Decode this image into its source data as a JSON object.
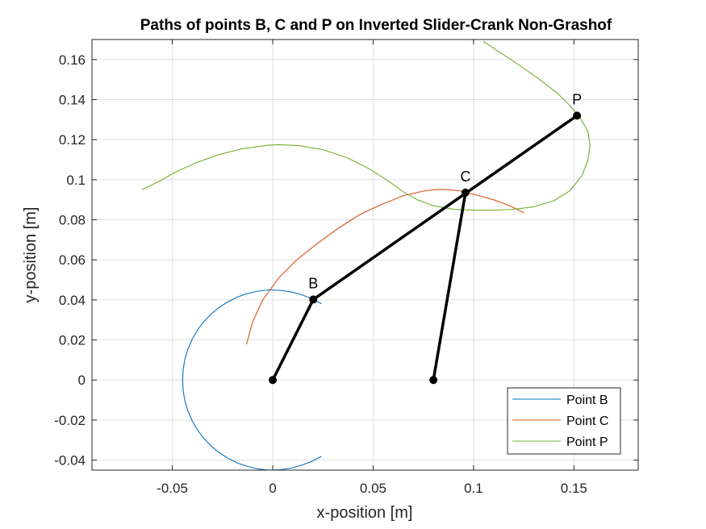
{
  "chart_data": {
    "type": "line",
    "title": "Paths of points B, C and P on Inverted Slider-Crank Non-Grashof",
    "xlabel": "x-position [m]",
    "ylabel": "y-position [m]",
    "xlim": [
      -0.09,
      0.182
    ],
    "ylim": [
      -0.045,
      0.17
    ],
    "grid": true,
    "legend_position": "bottom-right",
    "x_ticks": [
      -0.05,
      0,
      0.05,
      0.1,
      0.15
    ],
    "x_tick_labels": [
      "-0.05",
      "0",
      "0.05",
      "0.1",
      "0.15"
    ],
    "y_ticks": [
      -0.04,
      -0.02,
      0,
      0.02,
      0.04,
      0.06,
      0.08,
      0.1,
      0.12,
      0.14,
      0.16
    ],
    "y_tick_labels": [
      "-0.04",
      "-0.02",
      "0",
      "0.02",
      "0.04",
      "0.06",
      "0.08",
      "0.1",
      "0.12",
      "0.14",
      "0.16"
    ],
    "series": [
      {
        "name": "Point B",
        "color": "#0072BD",
        "points": [
          [
            0.0241,
            -0.0382
          ],
          [
            0.0193,
            -0.0407
          ],
          [
            0.0143,
            -0.0426
          ],
          [
            0.0091,
            -0.044
          ],
          [
            0.0037,
            -0.0448
          ],
          [
            -0.0018,
            -0.045
          ],
          [
            -0.0072,
            -0.0444
          ],
          [
            -0.0125,
            -0.0432
          ],
          [
            -0.0176,
            -0.0414
          ],
          [
            -0.0224,
            -0.039
          ],
          [
            -0.0269,
            -0.0361
          ],
          [
            -0.031,
            -0.0326
          ],
          [
            -0.0346,
            -0.0288
          ],
          [
            -0.0377,
            -0.0246
          ],
          [
            -0.0403,
            -0.02
          ],
          [
            -0.0423,
            -0.0152
          ],
          [
            -0.0438,
            -0.0102
          ],
          [
            -0.0446,
            -0.0051
          ],
          [
            -0.0449,
            0.0
          ],
          [
            -0.0446,
            0.0051
          ],
          [
            -0.0438,
            0.0102
          ],
          [
            -0.0423,
            0.0152
          ],
          [
            -0.0403,
            0.02
          ],
          [
            -0.0377,
            0.0246
          ],
          [
            -0.0346,
            0.0288
          ],
          [
            -0.031,
            0.0326
          ],
          [
            -0.0269,
            0.0361
          ],
          [
            -0.0224,
            0.039
          ],
          [
            -0.0176,
            0.0414
          ],
          [
            -0.0125,
            0.0432
          ],
          [
            -0.0072,
            0.0444
          ],
          [
            -0.0018,
            0.045
          ],
          [
            0.0037,
            0.0448
          ],
          [
            0.0091,
            0.044
          ],
          [
            0.0143,
            0.0426
          ],
          [
            0.0193,
            0.0407
          ],
          [
            0.0241,
            0.0382
          ]
        ]
      },
      {
        "name": "Point C",
        "color": "#D95319",
        "points": [
          [
            -0.013,
            0.018
          ],
          [
            -0.01,
            0.029
          ],
          [
            -0.005,
            0.04
          ],
          [
            0.003,
            0.051
          ],
          [
            0.012,
            0.06
          ],
          [
            0.022,
            0.068
          ],
          [
            0.033,
            0.076
          ],
          [
            0.044,
            0.083
          ],
          [
            0.055,
            0.088
          ],
          [
            0.065,
            0.092
          ],
          [
            0.075,
            0.0943
          ],
          [
            0.08,
            0.095
          ],
          [
            0.085,
            0.0952
          ],
          [
            0.093,
            0.0945
          ],
          [
            0.101,
            0.0925
          ],
          [
            0.11,
            0.09
          ],
          [
            0.118,
            0.087
          ],
          [
            0.125,
            0.0835
          ]
        ]
      },
      {
        "name": "Point P",
        "color": "#77AC30",
        "points": [
          [
            -0.065,
            0.095
          ],
          [
            -0.056,
            0.0995
          ],
          [
            -0.048,
            0.104
          ],
          [
            -0.038,
            0.1085
          ],
          [
            -0.027,
            0.1125
          ],
          [
            -0.015,
            0.1155
          ],
          [
            -0.002,
            0.1173
          ],
          [
            0.003,
            0.1175
          ],
          [
            0.013,
            0.117
          ],
          [
            0.025,
            0.115
          ],
          [
            0.037,
            0.111
          ],
          [
            0.048,
            0.1055
          ],
          [
            0.058,
            0.099
          ],
          [
            0.065,
            0.094
          ],
          [
            0.072,
            0.09
          ],
          [
            0.08,
            0.087
          ],
          [
            0.09,
            0.0852
          ],
          [
            0.1,
            0.0848
          ],
          [
            0.11,
            0.0848
          ],
          [
            0.12,
            0.0852
          ],
          [
            0.13,
            0.0865
          ],
          [
            0.14,
            0.0895
          ],
          [
            0.148,
            0.0945
          ],
          [
            0.154,
            0.102
          ],
          [
            0.157,
            0.11
          ],
          [
            0.158,
            0.117
          ],
          [
            0.157,
            0.124
          ],
          [
            0.153,
            0.131
          ],
          [
            0.148,
            0.137
          ],
          [
            0.142,
            0.143
          ],
          [
            0.133,
            0.15
          ],
          [
            0.123,
            0.157
          ],
          [
            0.111,
            0.165
          ],
          [
            0.105,
            0.169
          ]
        ]
      }
    ],
    "linkage": {
      "color": "#000000",
      "segments": [
        [
          [
            0,
            0
          ],
          [
            0.0202,
            0.0402
          ]
        ],
        [
          [
            0.0202,
            0.0402
          ],
          [
            0.1515,
            0.132
          ]
        ],
        [
          [
            0.08,
            0
          ],
          [
            0.096,
            0.0936
          ]
        ]
      ],
      "joints": [
        {
          "label": "",
          "x": 0,
          "y": 0
        },
        {
          "label": "B",
          "x": 0.0202,
          "y": 0.0402
        },
        {
          "label": "C",
          "x": 0.096,
          "y": 0.0936
        },
        {
          "label": "P",
          "x": 0.1515,
          "y": 0.132
        },
        {
          "label": "",
          "x": 0.08,
          "y": 0
        }
      ]
    }
  }
}
